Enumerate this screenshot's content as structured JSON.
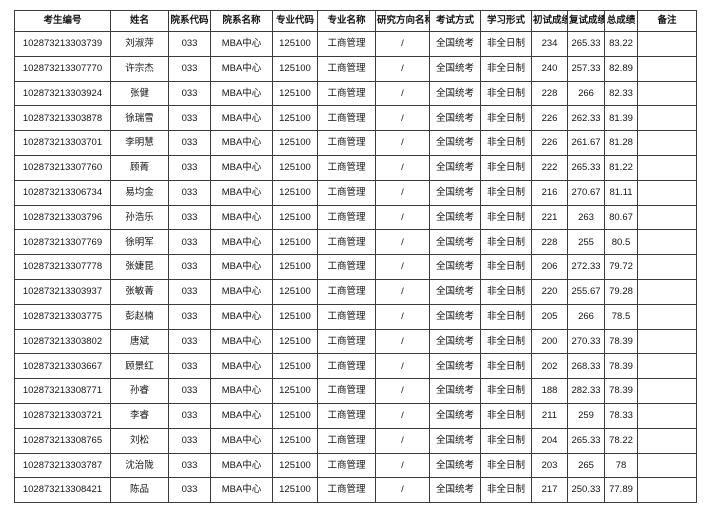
{
  "table": {
    "columns": [
      "考生编号",
      "姓名",
      "院系代码",
      "院系名称",
      "专业代码",
      "专业名称",
      "研究方向名称",
      "考试方式",
      "学习形式",
      "初试成绩",
      "复试成绩",
      "总成绩",
      "备注"
    ],
    "rows": [
      [
        "102873213303739",
        "刘淑萍",
        "033",
        "MBA中心",
        "125100",
        "工商管理",
        "/",
        "全国统考",
        "非全日制",
        "234",
        "265.33",
        "83.22",
        ""
      ],
      [
        "102873213307770",
        "许宗杰",
        "033",
        "MBA中心",
        "125100",
        "工商管理",
        "/",
        "全国统考",
        "非全日制",
        "240",
        "257.33",
        "82.89",
        ""
      ],
      [
        "102873213303924",
        "张健",
        "033",
        "MBA中心",
        "125100",
        "工商管理",
        "/",
        "全国统考",
        "非全日制",
        "228",
        "266",
        "82.33",
        ""
      ],
      [
        "102873213303878",
        "徐瑞雪",
        "033",
        "MBA中心",
        "125100",
        "工商管理",
        "/",
        "全国统考",
        "非全日制",
        "226",
        "262.33",
        "81.39",
        ""
      ],
      [
        "102873213303701",
        "李明慧",
        "033",
        "MBA中心",
        "125100",
        "工商管理",
        "/",
        "全国统考",
        "非全日制",
        "226",
        "261.67",
        "81.28",
        ""
      ],
      [
        "102873213307760",
        "顾菁",
        "033",
        "MBA中心",
        "125100",
        "工商管理",
        "/",
        "全国统考",
        "非全日制",
        "222",
        "265.33",
        "81.22",
        ""
      ],
      [
        "102873213306734",
        "易均金",
        "033",
        "MBA中心",
        "125100",
        "工商管理",
        "/",
        "全国统考",
        "非全日制",
        "216",
        "270.67",
        "81.11",
        ""
      ],
      [
        "102873213303796",
        "孙浩乐",
        "033",
        "MBA中心",
        "125100",
        "工商管理",
        "/",
        "全国统考",
        "非全日制",
        "221",
        "263",
        "80.67",
        ""
      ],
      [
        "102873213307769",
        "徐明军",
        "033",
        "MBA中心",
        "125100",
        "工商管理",
        "/",
        "全国统考",
        "非全日制",
        "228",
        "255",
        "80.5",
        ""
      ],
      [
        "102873213307778",
        "张婕昆",
        "033",
        "MBA中心",
        "125100",
        "工商管理",
        "/",
        "全国统考",
        "非全日制",
        "206",
        "272.33",
        "79.72",
        ""
      ],
      [
        "102873213303937",
        "张敏菁",
        "033",
        "MBA中心",
        "125100",
        "工商管理",
        "/",
        "全国统考",
        "非全日制",
        "220",
        "255.67",
        "79.28",
        ""
      ],
      [
        "102873213303775",
        "彭赵楠",
        "033",
        "MBA中心",
        "125100",
        "工商管理",
        "/",
        "全国统考",
        "非全日制",
        "205",
        "266",
        "78.5",
        ""
      ],
      [
        "102873213303802",
        "唐斌",
        "033",
        "MBA中心",
        "125100",
        "工商管理",
        "/",
        "全国统考",
        "非全日制",
        "200",
        "270.33",
        "78.39",
        ""
      ],
      [
        "102873213303667",
        "顾景红",
        "033",
        "MBA中心",
        "125100",
        "工商管理",
        "/",
        "全国统考",
        "非全日制",
        "202",
        "268.33",
        "78.39",
        ""
      ],
      [
        "102873213308771",
        "孙睿",
        "033",
        "MBA中心",
        "125100",
        "工商管理",
        "/",
        "全国统考",
        "非全日制",
        "188",
        "282.33",
        "78.39",
        ""
      ],
      [
        "102873213303721",
        "李睿",
        "033",
        "MBA中心",
        "125100",
        "工商管理",
        "/",
        "全国统考",
        "非全日制",
        "211",
        "259",
        "78.33",
        ""
      ],
      [
        "102873213308765",
        "刘松",
        "033",
        "MBA中心",
        "125100",
        "工商管理",
        "/",
        "全国统考",
        "非全日制",
        "204",
        "265.33",
        "78.22",
        ""
      ],
      [
        "102873213303787",
        "沈治陇",
        "033",
        "MBA中心",
        "125100",
        "工商管理",
        "/",
        "全国统考",
        "非全日制",
        "203",
        "265",
        "78",
        ""
      ],
      [
        "102873213308421",
        "陈品",
        "033",
        "MBA中心",
        "125100",
        "工商管理",
        "/",
        "全国统考",
        "非全日制",
        "217",
        "250.33",
        "77.89",
        ""
      ]
    ]
  }
}
